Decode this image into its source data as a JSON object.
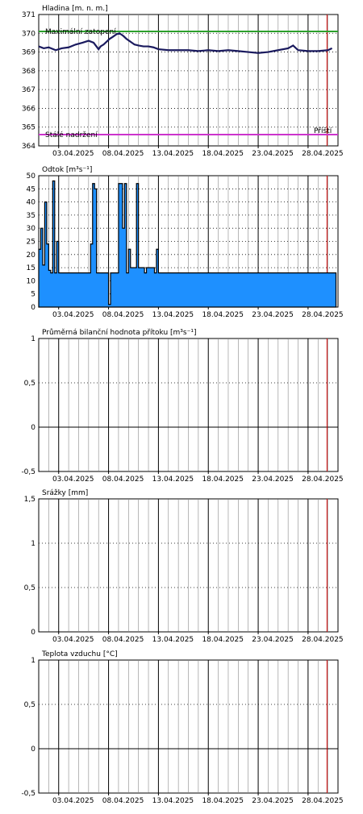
{
  "chart_data": [
    {
      "type": "line",
      "title": "Hladina [m. n. m.]",
      "x_ticks": [
        "03.04.2025",
        "08.04.2025",
        "13.04.2025",
        "18.04.2025",
        "23.04.2025",
        "28.04.2025"
      ],
      "y_ticks": [
        "364",
        "365",
        "366",
        "367",
        "368",
        "369",
        "370",
        "371"
      ],
      "ylim": [
        364,
        371
      ],
      "xlim": [
        1,
        31
      ],
      "grid": true,
      "now_marker_day": 29.9,
      "reference_lines": [
        {
          "label": "Maximální zatopení",
          "value": 370.1,
          "color": "#2ca02c",
          "label_color": "#b08a00"
        },
        {
          "label": "Stálé nadržení",
          "value": 364.6,
          "color": "#cc33cc",
          "label_color": "#cc33cc"
        }
      ],
      "right_label": "Příští",
      "series": [
        {
          "color": "#1a1a5e",
          "x": [
            1,
            1.5,
            2,
            2.7,
            3.3,
            4,
            4.7,
            5.4,
            6,
            6.5,
            7,
            7.2,
            7.5,
            7.8,
            8.1,
            8.4,
            8.8,
            9.1,
            9.5,
            9.8,
            10.2,
            10.6,
            11,
            11.5,
            12,
            12.5,
            13,
            14,
            15,
            16,
            17,
            18,
            19,
            20,
            21,
            22,
            23,
            24,
            25,
            26,
            26.5,
            27,
            28,
            29,
            30,
            30.4
          ],
          "y": [
            369.3,
            369.2,
            369.25,
            369.1,
            369.2,
            369.25,
            369.4,
            369.5,
            369.6,
            369.5,
            369.15,
            369.3,
            369.4,
            369.55,
            369.7,
            369.8,
            369.95,
            370,
            369.85,
            369.7,
            369.55,
            369.4,
            369.35,
            369.3,
            369.3,
            369.25,
            369.15,
            369.1,
            369.1,
            369.1,
            369.05,
            369.1,
            369.05,
            369.1,
            369.05,
            369.0,
            368.95,
            369.0,
            369.1,
            369.2,
            369.35,
            369.1,
            369.05,
            369.05,
            369.1,
            369.2
          ]
        }
      ]
    },
    {
      "type": "area",
      "title": "Odtok [m³s⁻¹]",
      "x_ticks": [
        "03.04.2025",
        "08.04.2025",
        "13.04.2025",
        "18.04.2025",
        "23.04.2025",
        "28.04.2025"
      ],
      "y_ticks": [
        "0",
        "5",
        "10",
        "15",
        "20",
        "25",
        "30",
        "35",
        "40",
        "45",
        "50"
      ],
      "ylim": [
        0,
        50
      ],
      "xlim": [
        1,
        31
      ],
      "grid": true,
      "now_marker_day": 29.9,
      "series": [
        {
          "color": "#1e90ff",
          "x": [
            1,
            1.2,
            1.4,
            1.6,
            1.8,
            2.0,
            2.2,
            2.4,
            2.6,
            2.8,
            3.0,
            3.2,
            3.5,
            4,
            4.5,
            5,
            5.5,
            5.8,
            6.0,
            6.2,
            6.4,
            6.6,
            6.8,
            7.0,
            7.2,
            7.4,
            7.6,
            7.8,
            8.0,
            8.2,
            8.4,
            8.6,
            8.8,
            9.0,
            9.2,
            9.4,
            9.6,
            9.8,
            10.0,
            10.2,
            10.4,
            10.6,
            10.8,
            11.0,
            11.2,
            11.4,
            11.6,
            11.8,
            12.0,
            12.2,
            12.4,
            12.6,
            12.8,
            13.0,
            13.2,
            13.5,
            14,
            14.5,
            15,
            15.5,
            16,
            16.5,
            17,
            17.5,
            18,
            18.5,
            19,
            19.5,
            20,
            20.5,
            21,
            21.5,
            22,
            22.5,
            23,
            23.5,
            24,
            24.5,
            25,
            25.5,
            26,
            26.3,
            26.6,
            27,
            27.3,
            27.6,
            28,
            28.3,
            28.6,
            29,
            29.3,
            29.6,
            30,
            30.3,
            30.6
          ],
          "y": [
            22,
            30,
            16,
            40,
            24,
            14,
            13,
            48,
            13,
            25,
            13,
            13,
            13,
            13,
            13,
            13,
            13,
            13,
            13,
            24,
            47,
            45,
            13,
            13,
            13,
            13,
            13,
            13,
            1,
            13,
            13,
            13,
            13,
            47,
            47,
            30,
            47,
            13,
            22,
            15,
            15,
            15,
            47,
            15,
            15,
            15,
            13,
            15,
            15,
            15,
            15,
            13,
            22,
            13,
            13,
            13,
            13,
            13,
            13,
            13,
            13,
            13,
            13,
            13,
            13,
            13,
            13,
            13,
            13,
            13,
            13,
            13,
            13,
            13,
            13,
            13,
            13,
            13,
            13,
            13,
            13,
            13,
            13,
            13,
            13,
            13,
            13,
            13,
            13,
            13,
            13,
            13,
            13,
            13,
            13
          ]
        }
      ]
    },
    {
      "type": "line",
      "title": "Průměrná bilanční hodnota přítoku   [m³s⁻¹]",
      "x_ticks": [
        "03.04.2025",
        "08.04.2025",
        "13.04.2025",
        "18.04.2025",
        "23.04.2025",
        "28.04.2025"
      ],
      "y_ticks": [
        "-0,5",
        "0",
        "0,5",
        "1"
      ],
      "ylim": [
        -0.5,
        1
      ],
      "xlim": [
        1,
        31
      ],
      "grid": true,
      "now_marker_day": 29.9,
      "series": []
    },
    {
      "type": "bar",
      "title": "Srážky [mm]",
      "x_ticks": [
        "03.04.2025",
        "08.04.2025",
        "13.04.2025",
        "18.04.2025",
        "23.04.2025",
        "28.04.2025"
      ],
      "y_ticks": [
        "0",
        "0,5",
        "1",
        "1,5"
      ],
      "ylim": [
        0,
        1.5
      ],
      "xlim": [
        1,
        31
      ],
      "grid": true,
      "now_marker_day": 29.9,
      "series": []
    },
    {
      "type": "line",
      "title": "Teplota vzduchu [°C]",
      "x_ticks": [
        "03.04.2025",
        "08.04.2025",
        "13.04.2025",
        "18.04.2025",
        "23.04.2025",
        "28.04.2025"
      ],
      "y_ticks": [
        "-0,5",
        "0",
        "0,5",
        "1"
      ],
      "ylim": [
        -0.5,
        1
      ],
      "xlim": [
        1,
        31
      ],
      "grid": true,
      "now_marker_day": 29.9,
      "series": []
    }
  ]
}
